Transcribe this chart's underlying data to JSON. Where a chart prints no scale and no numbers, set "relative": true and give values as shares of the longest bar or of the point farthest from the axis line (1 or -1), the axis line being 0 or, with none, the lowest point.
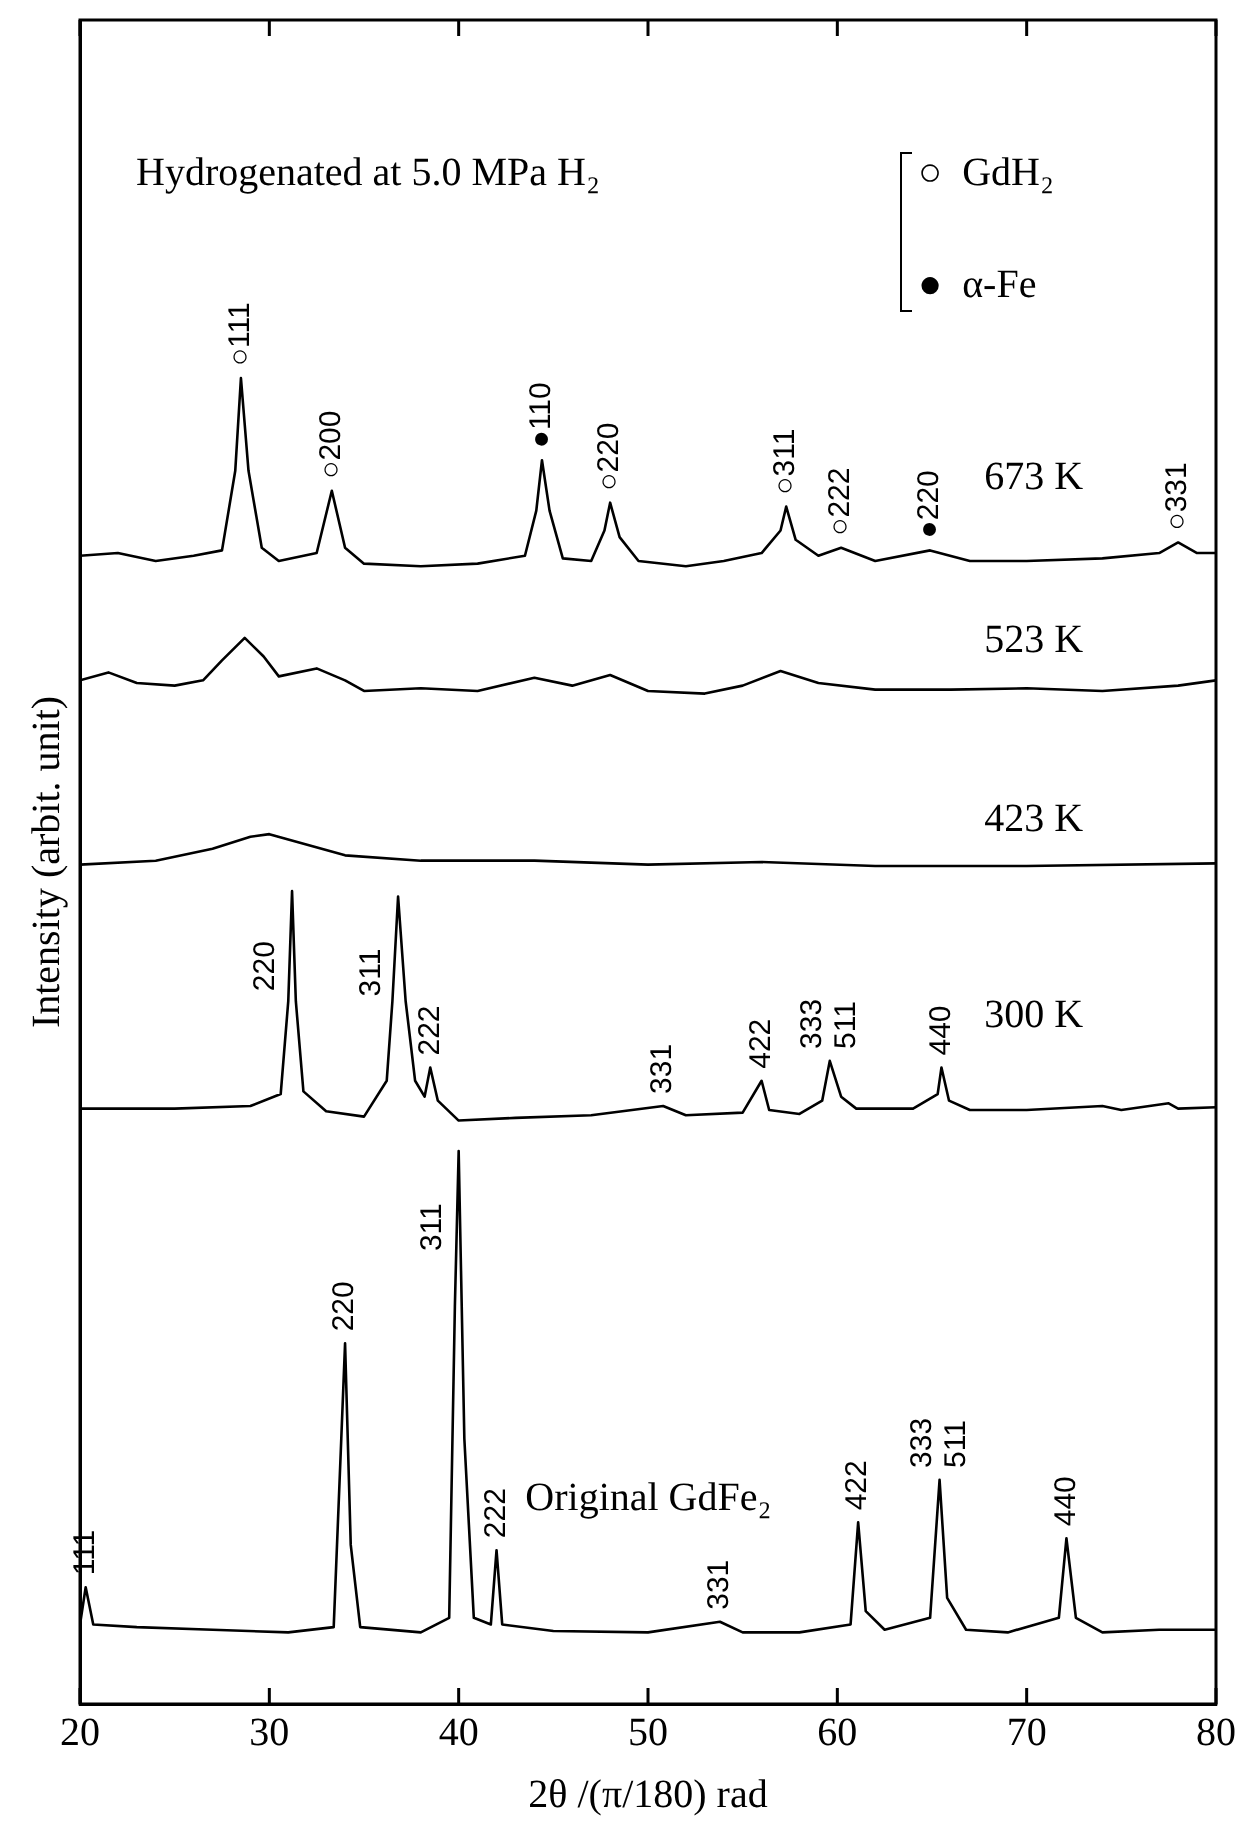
{
  "chart_data": {
    "type": "line",
    "relative": true,
    "xlabel": "2θ /(π/180) rad",
    "ylabel": "Intensity (arbit. unit)",
    "xlim": [
      20,
      80
    ],
    "xticks": [
      20,
      30,
      40,
      50,
      60,
      70,
      80
    ],
    "legend": false,
    "marker": "none",
    "line_style": "solid",
    "series": [
      {
        "name": "673 K",
        "color": "#000000",
        "x": [
          20,
          22,
          24,
          26,
          27.5,
          28.2,
          28.5,
          28.9,
          29.6,
          30.5,
          32.5,
          33.3,
          34,
          35,
          38,
          41,
          43.5,
          44.1,
          44.4,
          44.8,
          45.5,
          47,
          47.7,
          48,
          48.5,
          49.5,
          52,
          54,
          56,
          57,
          57.3,
          57.8,
          59,
          60.2,
          62,
          64.9,
          67,
          70,
          74,
          77,
          78,
          79,
          80
        ],
        "values": [
          0.866,
          0.868,
          0.862,
          0.866,
          0.87,
          0.93,
          1,
          0.93,
          0.872,
          0.862,
          0.868,
          0.915,
          0.872,
          0.86,
          0.858,
          0.86,
          0.866,
          0.9,
          0.938,
          0.9,
          0.864,
          0.862,
          0.885,
          0.906,
          0.88,
          0.862,
          0.858,
          0.862,
          0.868,
          0.885,
          0.903,
          0.878,
          0.866,
          0.872,
          0.862,
          0.87,
          0.862,
          0.862,
          0.864,
          0.868,
          0.876,
          0.868,
          0.868
        ]
      },
      {
        "name": "523 K",
        "color": "#000000",
        "x": [
          20,
          21.5,
          23,
          25,
          26.5,
          27.5,
          28.7,
          29.7,
          30.5,
          32.5,
          34,
          35,
          38,
          41,
          44,
          46,
          48,
          50,
          53,
          55,
          57,
          59,
          62,
          66,
          70,
          74,
          78,
          80
        ],
        "values": [
          0.772,
          0.778,
          0.77,
          0.768,
          0.772,
          0.787,
          0.804,
          0.79,
          0.775,
          0.781,
          0.772,
          0.764,
          0.766,
          0.764,
          0.774,
          0.768,
          0.776,
          0.764,
          0.762,
          0.768,
          0.779,
          0.77,
          0.765,
          0.765,
          0.766,
          0.764,
          0.768,
          0.772
        ]
      },
      {
        "name": "423 K",
        "color": "#000000",
        "x": [
          20,
          24,
          27,
          29,
          30,
          32,
          34,
          38,
          44,
          50,
          56,
          62,
          70,
          80
        ],
        "values": [
          0.633,
          0.636,
          0.645,
          0.654,
          0.656,
          0.648,
          0.64,
          0.636,
          0.636,
          0.633,
          0.635,
          0.632,
          0.632,
          0.634
        ]
      },
      {
        "name": "300 K",
        "color": "#000000",
        "x": [
          20,
          25,
          29,
          30.6,
          31,
          31.2,
          31.4,
          31.8,
          33,
          35,
          36.2,
          36.5,
          36.8,
          37.2,
          37.7,
          38.2,
          38.5,
          38.9,
          40,
          43,
          47,
          50.8,
          52,
          55,
          56,
          56.4,
          58,
          59.2,
          59.6,
          60.2,
          61,
          64,
          65.3,
          65.5,
          65.9,
          67,
          70,
          74,
          75,
          77.5,
          78,
          80
        ],
        "values": [
          0.449,
          0.449,
          0.451,
          0.46,
          0.53,
          0.613,
          0.53,
          0.462,
          0.447,
          0.443,
          0.47,
          0.53,
          0.609,
          0.53,
          0.47,
          0.458,
          0.48,
          0.455,
          0.44,
          0.442,
          0.444,
          0.451,
          0.444,
          0.446,
          0.47,
          0.448,
          0.445,
          0.455,
          0.485,
          0.458,
          0.449,
          0.449,
          0.46,
          0.48,
          0.455,
          0.448,
          0.448,
          0.451,
          0.448,
          0.453,
          0.449,
          0.45
        ]
      },
      {
        "name": "Original GdFe₂",
        "color": "#000000",
        "x": [
          20,
          20.3,
          20.7,
          23,
          27,
          31,
          33.4,
          33.8,
          34,
          34.3,
          34.8,
          38,
          39.5,
          39.8,
          40,
          40.3,
          40.8,
          41.7,
          42,
          42.3,
          45,
          50,
          53.8,
          55,
          58,
          60.7,
          61.1,
          61.5,
          62.5,
          64.9,
          65.4,
          65.8,
          66.8,
          69,
          71.7,
          72.1,
          72.6,
          74,
          77,
          80
        ],
        "values": [
          0.06,
          0.088,
          0.06,
          0.058,
          0.056,
          0.054,
          0.058,
          0.2,
          0.272,
          0.12,
          0.058,
          0.054,
          0.065,
          0.3,
          0.417,
          0.2,
          0.065,
          0.06,
          0.116,
          0.06,
          0.055,
          0.054,
          0.062,
          0.054,
          0.054,
          0.06,
          0.137,
          0.07,
          0.056,
          0.065,
          0.169,
          0.08,
          0.056,
          0.054,
          0.065,
          0.125,
          0.065,
          0.054,
          0.056,
          0.056
        ]
      }
    ],
    "annotations": [
      "Hydrogenated at 5.0 MPa H₂",
      "○  GdH₂",
      "●  α-Fe",
      {
        "text": "○111",
        "x": 28.5,
        "y": 1
      },
      {
        "text": "○200",
        "x": 33.3,
        "y": 0.915
      },
      {
        "text": "●110",
        "x": 44.4,
        "y": 0.938
      },
      {
        "text": "○220",
        "x": 48,
        "y": 0.906
      },
      {
        "text": "○311",
        "x": 57.3,
        "y": 0.903
      },
      {
        "text": "○222",
        "x": 60.2,
        "y": 0.872
      },
      {
        "text": "●220",
        "x": 64.9,
        "y": 0.87
      },
      {
        "text": "○331",
        "x": 78,
        "y": 0.876
      },
      {
        "text": "220",
        "x": 31.2,
        "y": 0.613
      },
      {
        "text": "311",
        "x": 36.8,
        "y": 0.609
      },
      {
        "text": "222",
        "x": 38.5,
        "y": 0.48
      },
      {
        "text": "331",
        "x": 50.8,
        "y": 0.451
      },
      {
        "text": "422",
        "x": 56,
        "y": 0.47
      },
      {
        "text": "333",
        "x": 59.6,
        "y": 0.485
      },
      {
        "text": "511",
        "x": 59.6,
        "y": 0.485
      },
      {
        "text": "440",
        "x": 65.5,
        "y": 0.48
      },
      {
        "text": "111",
        "x": 20.3,
        "y": 0.088
      },
      {
        "text": "220",
        "x": 34,
        "y": 0.272
      },
      {
        "text": "311",
        "x": 40,
        "y": 0.417
      },
      {
        "text": "222",
        "x": 42,
        "y": 0.116
      },
      {
        "text": "331",
        "x": 53.8,
        "y": 0.062
      },
      {
        "text": "422",
        "x": 61.1,
        "y": 0.137
      },
      {
        "text": "333",
        "x": 65.4,
        "y": 0.169
      },
      {
        "text": "511",
        "x": 65.4,
        "y": 0.169
      },
      {
        "text": "440",
        "x": 72.1,
        "y": 0.125
      }
    ]
  }
}
